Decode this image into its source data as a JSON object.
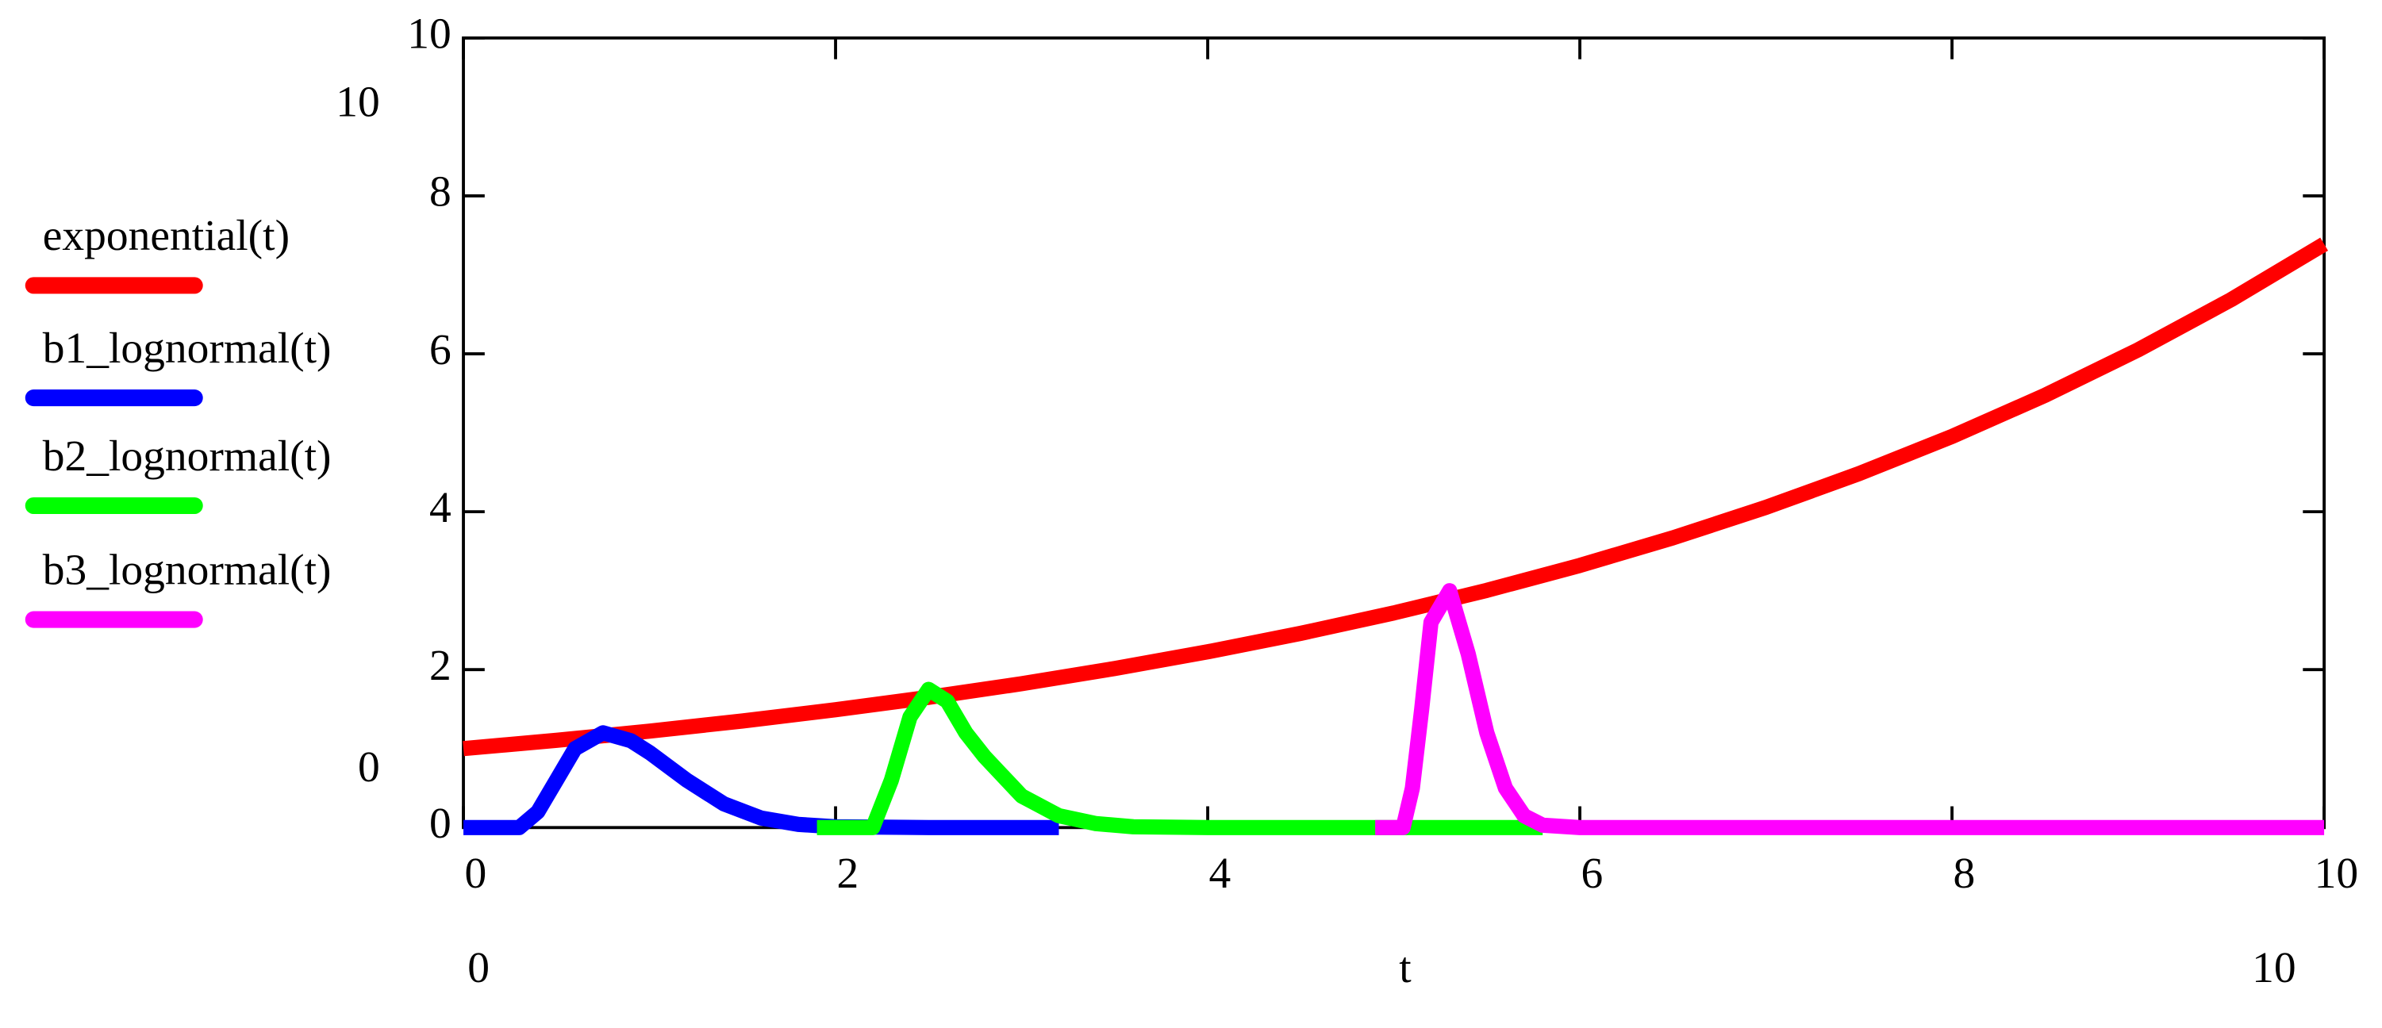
{
  "chart_data": {
    "type": "line",
    "xlabel": "t",
    "xlim": [
      0,
      10
    ],
    "ylim": [
      0,
      10
    ],
    "xticks": [
      0,
      2,
      4,
      6,
      8,
      10
    ],
    "yticks": [
      0,
      2,
      4,
      6,
      8,
      10
    ],
    "series": [
      {
        "name": "exponential(t)",
        "color": "#ff0000",
        "x": [
          0,
          0.5,
          1,
          1.5,
          2,
          2.5,
          3,
          3.5,
          4,
          4.5,
          5,
          5.5,
          6,
          6.5,
          7,
          7.5,
          8,
          8.5,
          9,
          9.5,
          10
        ],
        "values": [
          1,
          1.105,
          1.221,
          1.35,
          1.492,
          1.649,
          1.822,
          2.014,
          2.226,
          2.46,
          2.718,
          3.004,
          3.32,
          3.669,
          4.055,
          4.482,
          4.953,
          5.474,
          6.05,
          6.686,
          7.389
        ]
      },
      {
        "name": "b1_lognormal(t)",
        "color": "#0000ff",
        "x": [
          0,
          0.3,
          0.4,
          0.5,
          0.6,
          0.75,
          0.9,
          1.0,
          1.2,
          1.4,
          1.6,
          1.8,
          2.0,
          2.5,
          3.2
        ],
        "values": [
          0,
          0,
          0.2,
          0.6,
          1.0,
          1.2,
          1.1,
          0.95,
          0.6,
          0.3,
          0.12,
          0.04,
          0.01,
          0,
          0
        ]
      },
      {
        "name": "b2_lognormal(t)",
        "color": "#00ff00",
        "x": [
          1.9,
          2.2,
          2.3,
          2.4,
          2.5,
          2.6,
          2.7,
          2.8,
          3.0,
          3.2,
          3.4,
          3.6,
          4.0,
          5.0,
          5.8
        ],
        "values": [
          0,
          0,
          0.6,
          1.4,
          1.75,
          1.6,
          1.2,
          0.9,
          0.4,
          0.15,
          0.05,
          0.01,
          0,
          0,
          0
        ]
      },
      {
        "name": "b3_lognormal(t)",
        "color": "#ff00ff",
        "x": [
          4.9,
          5.05,
          5.1,
          5.15,
          5.2,
          5.3,
          5.4,
          5.5,
          5.6,
          5.7,
          5.8,
          6.0,
          7,
          10
        ],
        "values": [
          0,
          0,
          0.5,
          1.5,
          2.6,
          3.0,
          2.2,
          1.2,
          0.5,
          0.15,
          0.03,
          0,
          0,
          0
        ]
      }
    ]
  }
}
